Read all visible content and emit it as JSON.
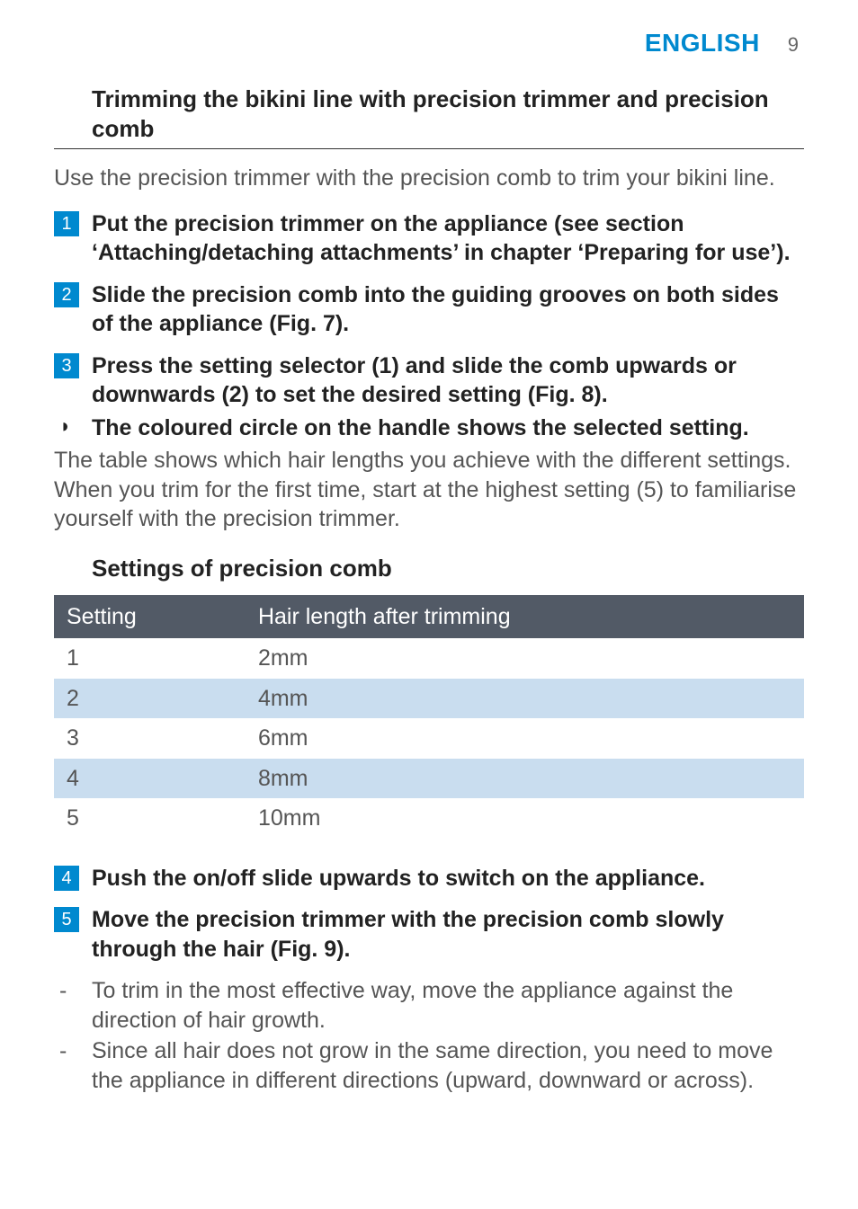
{
  "header": {
    "language": "ENGLISH",
    "page_number": "9",
    "lang_color": "#0089cf"
  },
  "section_title": "Trimming the bikini line with precision trimmer and precision comb",
  "intro": "Use the precision trimmer with the precision comb to trim your bikini line.",
  "steps": [
    {
      "n": "1",
      "text": "Put the precision trimmer on the appliance (see section ‘Attaching/detaching attachments’ in chapter ‘Preparing for use’)."
    },
    {
      "n": "2",
      "text": "Slide the precision comb into the guiding grooves on both sides of the appliance (Fig. 7)."
    },
    {
      "n": "3",
      "text": "Press the setting selector (1) and slide the comb upwards or downwards (2) to set the desired setting (Fig. 8)."
    }
  ],
  "pointer_text": "The coloured circle on the handle shows the selected setting.",
  "after_note": "The table shows which hair lengths you achieve with the different settings. When you trim for the first time, start at the highest setting (5) to familiarise yourself with the precision trimmer.",
  "table_heading": "Settings of precision comb",
  "table": {
    "columns": [
      "Setting",
      "Hair length after trimming"
    ],
    "rows": [
      [
        "1",
        "2mm"
      ],
      [
        "2",
        "4mm"
      ],
      [
        "3",
        "6mm"
      ],
      [
        "4",
        "8mm"
      ],
      [
        "5",
        "10mm"
      ]
    ],
    "header_bg": "#525a66",
    "header_fg": "#ffffff",
    "row_even_bg": "#c9ddef",
    "row_odd_bg": "#ffffff"
  },
  "steps2": [
    {
      "n": "4",
      "text": "Push the on/off slide upwards to switch on the appliance."
    },
    {
      "n": "5",
      "text": "Move the precision trimmer with the precision comb slowly through the hair (Fig. 9)."
    }
  ],
  "dash_items": [
    "To trim in the most effective way, move the appliance against the direction of hair growth.",
    "Since all hair does not grow in the same direction, you need to move the appliance in different directions (upward, downward or across)."
  ],
  "step_badge_bg": "#0089cf"
}
